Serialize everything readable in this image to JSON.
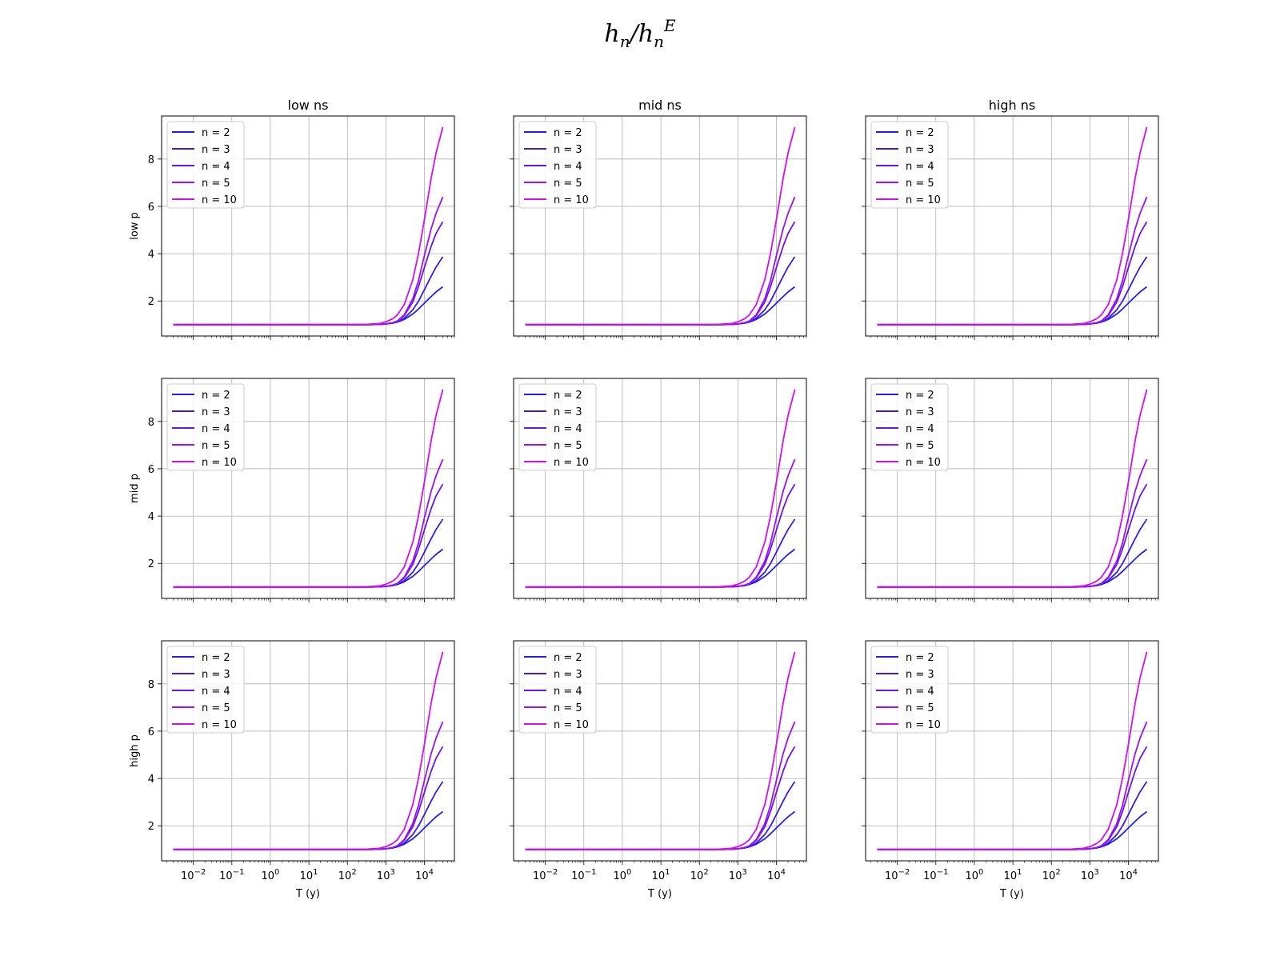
{
  "figure": {
    "title_base": "h",
    "title_sub": "n",
    "title_sep": "/",
    "title_base2": "h",
    "title_sub2": "n",
    "title_sup2": "E"
  },
  "chart_data": {
    "type": "line",
    "grid": true,
    "legend_placement": "upper-left",
    "x_scale": "log",
    "xlabel": "T (y)",
    "xlim": [
      0.0015,
      60000
    ],
    "ylim": [
      0.52,
      9.82
    ],
    "x_tick_labels": [
      {
        "value": 0.01,
        "base": "10",
        "exp": "−2"
      },
      {
        "value": 0.1,
        "base": "10",
        "exp": "−1"
      },
      {
        "value": 1,
        "base": "10",
        "exp": "0"
      },
      {
        "value": 10,
        "base": "10",
        "exp": "1"
      },
      {
        "value": 100,
        "base": "10",
        "exp": "2"
      },
      {
        "value": 1000,
        "base": "10",
        "exp": "3"
      },
      {
        "value": 10000,
        "base": "10",
        "exp": "4"
      }
    ],
    "y_ticks": [
      2,
      4,
      6,
      8
    ],
    "column_titles": [
      "low ns",
      "mid ns",
      "high ns"
    ],
    "row_labels": [
      "low p",
      "mid p",
      "high p"
    ],
    "x": [
      0.003,
      0.01,
      0.1,
      1,
      10,
      100,
      300,
      700,
      1000,
      1500,
      2000,
      3000,
      5000,
      7000,
      10000,
      15000,
      20000,
      30000
    ],
    "series": [
      {
        "name": "n = 2",
        "color": "#1f1ff5",
        "values": [
          1,
          1,
          1,
          1,
          1,
          1,
          1.0,
          1.01,
          1.03,
          1.06,
          1.11,
          1.22,
          1.45,
          1.66,
          1.91,
          2.19,
          2.38,
          2.6
        ]
      },
      {
        "name": "n = 3",
        "color": "#3a1af0",
        "values": [
          1,
          1,
          1,
          1,
          1,
          1,
          1.0,
          1.01,
          1.03,
          1.07,
          1.12,
          1.27,
          1.63,
          1.99,
          2.48,
          3.05,
          3.43,
          3.87
        ]
      },
      {
        "name": "n = 4",
        "color": "#6a14f0",
        "values": [
          1,
          1,
          1,
          1,
          1,
          1,
          1.0,
          1.01,
          1.03,
          1.08,
          1.15,
          1.38,
          1.96,
          2.6,
          3.42,
          4.32,
          4.85,
          5.35
        ]
      },
      {
        "name": "n = 5",
        "color": "#9d10f0",
        "values": [
          1,
          1,
          1,
          1,
          1,
          1,
          1.0,
          1.01,
          1.03,
          1.08,
          1.16,
          1.42,
          2.1,
          2.86,
          3.93,
          5.06,
          5.7,
          6.4
        ]
      },
      {
        "name": "n = 10",
        "color": "#d60cf2",
        "values": [
          1,
          1,
          1,
          1,
          1,
          1,
          1.01,
          1.05,
          1.12,
          1.25,
          1.42,
          1.85,
          2.9,
          4.0,
          5.45,
          7.2,
          8.25,
          9.35
        ]
      }
    ]
  }
}
